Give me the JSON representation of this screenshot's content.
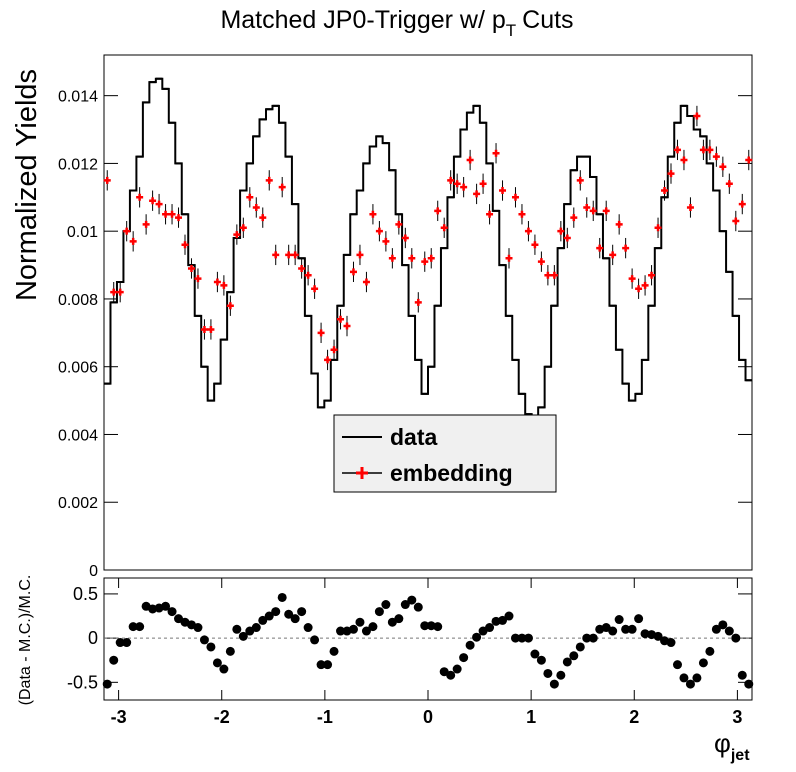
{
  "chart_data": [
    {
      "type": "histogram",
      "title": {
        "main": "Matched JP0-Trigger w/ p",
        "sub": "T",
        "rest": "Cuts"
      },
      "ylabel": "Normalized Yields",
      "xlim": [
        -3.1416,
        3.1416
      ],
      "ylim": [
        0,
        0.0152
      ],
      "yticks": [
        0,
        0.002,
        0.004,
        0.006,
        0.008,
        0.01,
        0.012,
        0.014
      ],
      "legend": "center",
      "series": [
        {
          "name": "data",
          "color": "#000000",
          "style": "step",
          "values": [
            0.0055,
            0.0079,
            0.0085,
            0.01,
            0.0112,
            0.0122,
            0.0138,
            0.0144,
            0.0145,
            0.0142,
            0.0132,
            0.012,
            0.0105,
            0.009,
            0.0075,
            0.006,
            0.005,
            0.0055,
            0.0068,
            0.0082,
            0.0098,
            0.0112,
            0.012,
            0.0128,
            0.0133,
            0.0136,
            0.0137,
            0.0132,
            0.0122,
            0.0108,
            0.0092,
            0.0075,
            0.0058,
            0.0048,
            0.005,
            0.0062,
            0.0078,
            0.0093,
            0.0105,
            0.0112,
            0.012,
            0.0125,
            0.0128,
            0.0126,
            0.0118,
            0.0105,
            0.009,
            0.0075,
            0.0062,
            0.0052,
            0.006,
            0.0078,
            0.0095,
            0.011,
            0.0122,
            0.013,
            0.0135,
            0.0137,
            0.0132,
            0.012,
            0.0106,
            0.009,
            0.0075,
            0.0062,
            0.0052,
            0.0046,
            0.0045,
            0.0048,
            0.006,
            0.0078,
            0.0095,
            0.0108,
            0.0118,
            0.0122,
            0.0122,
            0.0116,
            0.0105,
            0.0092,
            0.0078,
            0.0065,
            0.0055,
            0.005,
            0.0052,
            0.0062,
            0.0078,
            0.0095,
            0.011,
            0.0122,
            0.0132,
            0.0137,
            0.0134,
            0.013,
            0.0128,
            0.012,
            0.0112,
            0.01,
            0.0088,
            0.0075,
            0.0062,
            0.0056
          ]
        },
        {
          "name": "embedding",
          "color": "#ff0000",
          "style": "points",
          "values": [
            0.0115,
            0.0082,
            0.0082,
            0.01,
            0.0097,
            0.011,
            0.0102,
            0.0109,
            0.0108,
            0.0105,
            0.0105,
            0.0104,
            0.0096,
            0.0089,
            0.0086,
            0.0071,
            0.0071,
            0.0085,
            0.0084,
            0.0078,
            0.0099,
            0.0101,
            0.011,
            0.0107,
            0.0104,
            0.0115,
            0.0093,
            0.0113,
            0.0093,
            0.0093,
            0.0089,
            0.0087,
            0.0083,
            0.007,
            0.0062,
            0.0065,
            0.0074,
            0.0072,
            0.0088,
            0.0093,
            0.0085,
            0.0105,
            0.01,
            0.0097,
            0.0092,
            0.0102,
            0.0098,
            0.0092,
            0.0079,
            0.0091,
            0.0092,
            0.0106,
            0.0101,
            0.0115,
            0.0114,
            0.0113,
            0.0121,
            0.0111,
            0.0114,
            0.0105,
            0.0123,
            0.0112,
            0.0092,
            0.011,
            0.0105,
            0.01,
            0.0096,
            0.0091,
            0.0087,
            0.0087,
            0.01,
            0.0098,
            0.0104,
            0.0115,
            0.0107,
            0.0106,
            0.0095,
            0.0106,
            0.0093,
            0.0102,
            0.0095,
            0.0086,
            0.0083,
            0.0084,
            0.0087,
            0.0101,
            0.0112,
            0.0117,
            0.0124,
            0.0121,
            0.0107,
            0.0134,
            0.0124,
            0.0124,
            0.0122,
            0.0119,
            0.0114,
            0.0103,
            0.0108,
            0.0121
          ],
          "errors": [
            0.0003,
            0.0003,
            0.0003,
            0.0003,
            0.0003,
            0.0003,
            0.0003,
            0.0003,
            0.0003,
            0.0003,
            0.0003,
            0.0003,
            0.0003,
            0.0003,
            0.0003,
            0.0003,
            0.0003,
            0.0003,
            0.0003,
            0.0003,
            0.0003,
            0.0003,
            0.0003,
            0.0003,
            0.0003,
            0.0003,
            0.0003,
            0.0003,
            0.0003,
            0.0003,
            0.0003,
            0.0003,
            0.0003,
            0.0003,
            0.0003,
            0.0003,
            0.0003,
            0.0003,
            0.0003,
            0.0003,
            0.0003,
            0.0003,
            0.0003,
            0.0003,
            0.0003,
            0.0003,
            0.0003,
            0.0003,
            0.0003,
            0.0003,
            0.0003,
            0.0003,
            0.0003,
            0.0003,
            0.0003,
            0.0003,
            0.0003,
            0.0003,
            0.0003,
            0.0003,
            0.0003,
            0.0003,
            0.0003,
            0.0003,
            0.0003,
            0.0003,
            0.0003,
            0.0003,
            0.0003,
            0.0003,
            0.0003,
            0.0003,
            0.0003,
            0.0003,
            0.0003,
            0.0003,
            0.0003,
            0.0003,
            0.0003,
            0.0003,
            0.0003,
            0.0003,
            0.0003,
            0.0003,
            0.0003,
            0.0003,
            0.0003,
            0.0003,
            0.0003,
            0.0003,
            0.0003,
            0.0003,
            0.0003,
            0.0003,
            0.0003,
            0.0003,
            0.0003,
            0.0003,
            0.0003,
            0.0003
          ]
        }
      ]
    },
    {
      "type": "scatter",
      "ylabel": "(Data - M.C.)/M.C.",
      "xlabel": {
        "text": "φ",
        "sub": "jet"
      },
      "xlim": [
        -3.1416,
        3.1416
      ],
      "xticks": [
        -3,
        -2,
        -1,
        0,
        1,
        2,
        3
      ],
      "ylim": [
        -0.7,
        0.68
      ],
      "yticks": [
        -0.5,
        0,
        0.5
      ],
      "color": "#000000",
      "values": [
        -0.52,
        -0.25,
        -0.05,
        -0.05,
        0.13,
        0.13,
        0.36,
        0.33,
        0.34,
        0.36,
        0.3,
        0.22,
        0.18,
        0.15,
        0.12,
        -0.02,
        -0.1,
        -0.28,
        -0.35,
        -0.15,
        0.1,
        0.02,
        0.08,
        0.12,
        0.2,
        0.25,
        0.3,
        0.46,
        0.27,
        0.22,
        0.3,
        0.12,
        -0.02,
        -0.3,
        -0.3,
        -0.15,
        0.08,
        0.08,
        0.1,
        0.18,
        0.08,
        0.13,
        0.3,
        0.38,
        0.18,
        0.22,
        0.38,
        0.43,
        0.35,
        0.14,
        0.14,
        0.13,
        -0.38,
        -0.42,
        -0.35,
        -0.22,
        -0.08,
        0.01,
        0.08,
        0.12,
        0.19,
        0.2,
        0.25,
        0.0,
        0.0,
        0.0,
        -0.18,
        -0.25,
        -0.4,
        -0.52,
        -0.42,
        -0.27,
        -0.2,
        -0.1,
        0.0,
        0.0,
        0.1,
        0.12,
        0.08,
        0.21,
        0.1,
        0.1,
        0.22,
        0.05,
        0.04,
        0.02,
        -0.03,
        -0.05,
        -0.3,
        -0.45,
        -0.52,
        -0.45,
        -0.28,
        -0.15,
        0.1,
        0.15,
        0.08,
        0.0,
        -0.42,
        -0.52
      ]
    }
  ]
}
